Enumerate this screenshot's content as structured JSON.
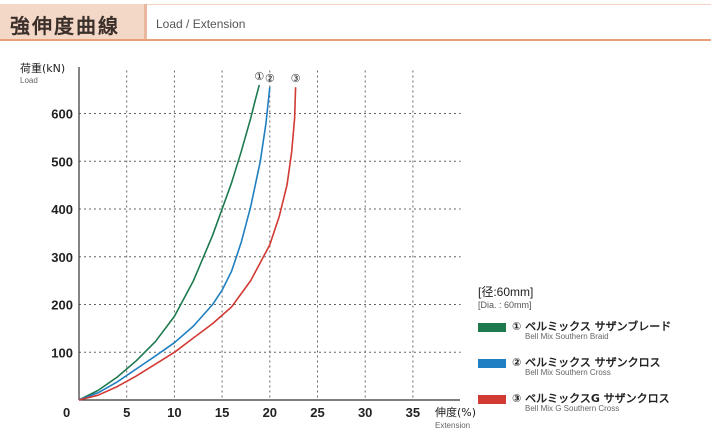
{
  "header": {
    "title": "強伸度曲線",
    "subtitle": "Load / Extension"
  },
  "chart_data": {
    "type": "line",
    "ylabel": "荷重(kN)",
    "ylabel_sub": "Load",
    "xlabel": "伸度(%)",
    "xlabel_sub": "Extension",
    "origin_label": "0",
    "x_ticks": [
      5,
      10,
      15,
      20,
      25,
      30,
      35
    ],
    "y_ticks": [
      100,
      200,
      300,
      400,
      500,
      600
    ],
    "xlim": [
      0,
      40
    ],
    "ylim": [
      0,
      690
    ],
    "grid": true,
    "series": [
      {
        "name": "ベルミックス サザンブレード",
        "marker": "①",
        "color": "#1e7a4e",
        "points": [
          [
            0,
            0
          ],
          [
            2,
            20
          ],
          [
            4,
            48
          ],
          [
            6,
            82
          ],
          [
            8,
            122
          ],
          [
            10,
            175
          ],
          [
            12,
            250
          ],
          [
            14,
            345
          ],
          [
            15,
            400
          ],
          [
            16,
            455
          ],
          [
            17,
            520
          ],
          [
            18,
            590
          ],
          [
            18.5,
            630
          ],
          [
            18.9,
            660
          ]
        ]
      },
      {
        "name": "ベルミックス サザンクロス",
        "marker": "②",
        "color": "#1f7fc0",
        "points": [
          [
            0,
            0
          ],
          [
            2,
            15
          ],
          [
            4,
            38
          ],
          [
            6,
            65
          ],
          [
            8,
            92
          ],
          [
            10,
            120
          ],
          [
            12,
            155
          ],
          [
            14,
            200
          ],
          [
            15,
            230
          ],
          [
            16,
            270
          ],
          [
            17,
            330
          ],
          [
            18,
            405
          ],
          [
            19,
            500
          ],
          [
            19.6,
            580
          ],
          [
            20,
            655
          ]
        ]
      },
      {
        "name": "ベルミックスG サザンクロス",
        "marker": "③",
        "color": "#d23a34",
        "points": [
          [
            0,
            0
          ],
          [
            2,
            10
          ],
          [
            4,
            28
          ],
          [
            6,
            50
          ],
          [
            8,
            75
          ],
          [
            10,
            100
          ],
          [
            12,
            130
          ],
          [
            14,
            160
          ],
          [
            16,
            195
          ],
          [
            18,
            250
          ],
          [
            20,
            325
          ],
          [
            21,
            385
          ],
          [
            21.8,
            450
          ],
          [
            22.3,
            520
          ],
          [
            22.6,
            590
          ],
          [
            22.7,
            655
          ]
        ]
      }
    ]
  },
  "legend": {
    "header": "[径:60mm]",
    "header_sub": "[Dia. : 60mm]",
    "items": [
      {
        "label": "① ベルミックス サザンブレード",
        "sub": "Bell Mix Southern Braid",
        "color": "#1e7a4e"
      },
      {
        "label": "② ベルミックス サザンクロス",
        "sub": "Bell Mix Southern Cross",
        "color": "#1f7fc0"
      },
      {
        "label": "③ ベルミックスG サザンクロス",
        "sub": "Bell Mix G Southern Cross",
        "color": "#d23a34"
      }
    ]
  }
}
